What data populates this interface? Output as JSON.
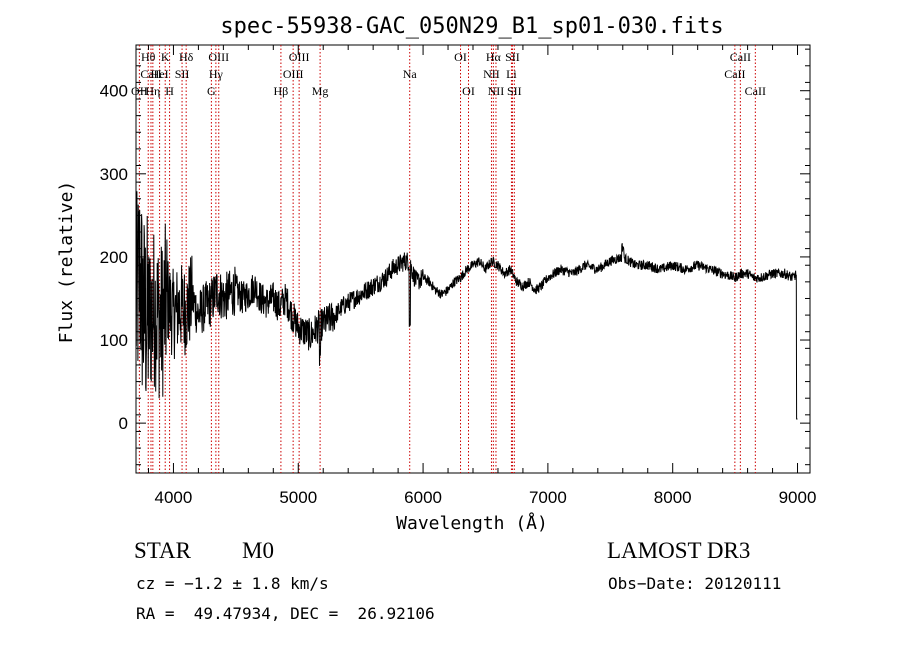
{
  "chart_data": {
    "type": "line",
    "title": "spec-55938-GAC_050N29_B1_sp01-030.fits",
    "xlabel": "Wavelength (Å)",
    "ylabel": "Flux (relative)",
    "xlim": [
      3700,
      9100
    ],
    "ylim": [
      -60,
      455
    ],
    "xticks": [
      4000,
      5000,
      6000,
      7000,
      8000,
      9000
    ],
    "yticks": [
      0,
      100,
      200,
      300,
      400
    ],
    "spectrum_anchor_points": {
      "x": [
        3700,
        3730,
        3760,
        3800,
        3850,
        3900,
        3950,
        4000,
        4050,
        4100,
        4150,
        4200,
        4250,
        4300,
        4350,
        4400,
        4450,
        4500,
        4550,
        4600,
        4650,
        4700,
        4750,
        4800,
        4850,
        4900,
        4950,
        5000,
        5050,
        5100,
        5150,
        5200,
        5250,
        5300,
        5350,
        5400,
        5450,
        5500,
        5550,
        5600,
        5650,
        5700,
        5750,
        5800,
        5850,
        5890,
        5920,
        5950,
        6000,
        6050,
        6100,
        6150,
        6200,
        6250,
        6300,
        6350,
        6400,
        6450,
        6500,
        6550,
        6600,
        6650,
        6700,
        6750,
        6800,
        6850,
        6900,
        6950,
        7000,
        7050,
        7100,
        7200,
        7300,
        7400,
        7500,
        7600,
        7700,
        7800,
        7900,
        8000,
        8100,
        8200,
        8300,
        8400,
        8500,
        8550,
        8600,
        8650,
        8700,
        8800,
        8900,
        8960,
        9000
      ],
      "y": [
        140,
        180,
        130,
        125,
        140,
        120,
        150,
        130,
        140,
        135,
        150,
        130,
        140,
        145,
        160,
        150,
        155,
        160,
        150,
        155,
        165,
        150,
        145,
        150,
        140,
        150,
        130,
        115,
        110,
        105,
        115,
        120,
        125,
        130,
        140,
        145,
        150,
        155,
        160,
        165,
        170,
        175,
        185,
        190,
        195,
        195,
        180,
        170,
        175,
        170,
        160,
        155,
        160,
        170,
        175,
        185,
        190,
        195,
        185,
        195,
        190,
        180,
        185,
        170,
        165,
        170,
        160,
        165,
        175,
        180,
        185,
        180,
        190,
        185,
        195,
        200,
        190,
        190,
        185,
        190,
        185,
        190,
        185,
        180,
        175,
        180,
        180,
        175,
        175,
        180,
        180,
        175,
        180
      ]
    },
    "line_markers": [
      {
        "label": "Hθ",
        "x": 3798,
        "row": 1
      },
      {
        "label": "CaII",
        "x": 3820,
        "row": 2
      },
      {
        "label": "OII",
        "x": 3727,
        "row": 3
      },
      {
        "label": "K",
        "x": 3934,
        "row": 1
      },
      {
        "label": "HeI",
        "x": 3889,
        "row": 2
      },
      {
        "label": "Hη",
        "x": 3835,
        "row": 3
      },
      {
        "label": "Hδ",
        "x": 4102,
        "row": 1
      },
      {
        "label": "SII",
        "x": 4069,
        "row": 2
      },
      {
        "label": "H",
        "x": 3969,
        "row": 3
      },
      {
        "label": "OIII",
        "x": 4363,
        "row": 1
      },
      {
        "label": "Hγ",
        "x": 4340,
        "row": 2
      },
      {
        "label": "G",
        "x": 4304,
        "row": 3
      },
      {
        "label": "OIII",
        "x": 5007,
        "row": 1
      },
      {
        "label": "OIII",
        "x": 4959,
        "row": 2
      },
      {
        "label": "Hβ",
        "x": 4861,
        "row": 3
      },
      {
        "label": "Mg",
        "x": 5175,
        "row": 3
      },
      {
        "label": "Na",
        "x": 5893,
        "row": 2
      },
      {
        "label": "OI",
        "x": 6300,
        "row": 1
      },
      {
        "label": "OI",
        "x": 6364,
        "row": 3
      },
      {
        "label": "Hα",
        "x": 6563,
        "row": 1
      },
      {
        "label": "NII",
        "x": 6548,
        "row": 2
      },
      {
        "label": "NII",
        "x": 6584,
        "row": 3
      },
      {
        "label": "SII",
        "x": 6716,
        "row": 1
      },
      {
        "label": "Li",
        "x": 6708,
        "row": 2
      },
      {
        "label": "SII",
        "x": 6731,
        "row": 3
      },
      {
        "label": "CaII",
        "x": 8542,
        "row": 1
      },
      {
        "label": "CaII",
        "x": 8498,
        "row": 2
      },
      {
        "label": "CaII",
        "x": 8662,
        "row": 3
      }
    ]
  },
  "info": {
    "object_class": "STAR",
    "subclass": "M0",
    "survey": "LAMOST DR3",
    "redshift": "cz = −1.2 ± 1.8 km/s",
    "obs_date": "Obs−Date: 20120111",
    "coords": "RA =  49.47934, DEC =  26.92106"
  },
  "colors": {
    "spectrum": "#000000",
    "marker_line": "#cc0000",
    "axes": "#000000"
  }
}
